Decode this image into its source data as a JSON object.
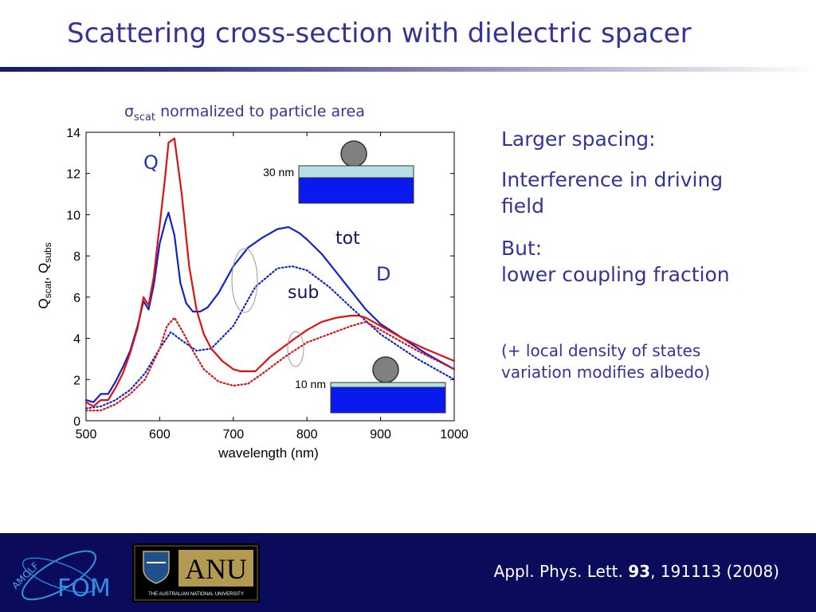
{
  "slide": {
    "title": "Scattering cross-section with dielectric spacer"
  },
  "right_panel": {
    "line1": "Larger spacing:",
    "line2": "Interference in driving field",
    "line3a": "But:",
    "line3b": "lower coupling fraction",
    "note": "(+ local density of states variation modifies albedo)"
  },
  "footer": {
    "reference_prefix": "Appl. Phys. Lett. ",
    "reference_volume": "93",
    "reference_suffix": ", 191113 (2008)",
    "logo_left_text": "AMOLF FOM",
    "logo_right_text": "ANU",
    "logo_right_subtext": "THE AUSTRALIAN NATIONAL UNIVERSITY"
  },
  "chart_data": {
    "type": "line",
    "title_main": "σ",
    "title_sub": "scat",
    "title_rest": " normalized to particle area",
    "xlabel": "wavelength (nm)",
    "ylabel_q1": "Q",
    "ylabel_s1": "scat",
    "ylabel_sep": ", Q",
    "ylabel_s2": "subs",
    "xlim": [
      500,
      1000
    ],
    "ylim": [
      0,
      14
    ],
    "xticks": [
      "500",
      "600",
      "700",
      "800",
      "900",
      "1000"
    ],
    "yticks": [
      "0",
      "2",
      "4",
      "6",
      "8",
      "10",
      "12",
      "14"
    ],
    "annotations": {
      "Q": "Q",
      "D": "D",
      "tot": "tot",
      "sub": "sub",
      "inset_top_label": "30 nm",
      "inset_bottom_label": "10 nm"
    },
    "colors": {
      "red": "#dd1111",
      "blue": "#1122cc"
    },
    "series": [
      {
        "color": "blue",
        "dash": false,
        "x": [
          500,
          510,
          520,
          530,
          540,
          550,
          560,
          570,
          578,
          585,
          592,
          600,
          608,
          612,
          620,
          628,
          636,
          645,
          655,
          665,
          680,
          700,
          720,
          740,
          760,
          775,
          790,
          800,
          820,
          840,
          860,
          880,
          900,
          930,
          960,
          1000
        ],
        "y": [
          1.0,
          0.9,
          1.3,
          1.3,
          1.9,
          2.6,
          3.4,
          4.6,
          5.8,
          5.4,
          6.6,
          8.6,
          9.7,
          10.1,
          9.0,
          6.7,
          5.7,
          5.3,
          5.3,
          5.5,
          6.2,
          7.5,
          8.4,
          8.9,
          9.3,
          9.4,
          9.1,
          8.8,
          8.1,
          7.2,
          6.3,
          5.4,
          4.7,
          4.0,
          3.3,
          2.5
        ]
      },
      {
        "color": "blue",
        "dash": true,
        "x": [
          500,
          520,
          540,
          560,
          580,
          600,
          615,
          630,
          650,
          670,
          700,
          730,
          760,
          780,
          800,
          830,
          860,
          900,
          950,
          1000
        ],
        "y": [
          0.6,
          0.7,
          1.0,
          1.5,
          2.3,
          3.5,
          4.3,
          3.9,
          3.4,
          3.5,
          4.6,
          6.5,
          7.4,
          7.5,
          7.3,
          6.5,
          5.5,
          4.2,
          3.0,
          2.0
        ]
      },
      {
        "color": "red",
        "dash": false,
        "x": [
          500,
          510,
          520,
          530,
          540,
          550,
          560,
          570,
          578,
          585,
          592,
          600,
          607,
          612,
          620,
          630,
          640,
          650,
          660,
          670,
          685,
          700,
          710,
          730,
          750,
          780,
          800,
          820,
          840,
          860,
          870,
          880,
          900,
          930,
          960,
          1000
        ],
        "y": [
          0.9,
          0.7,
          1.0,
          1.0,
          1.6,
          2.3,
          3.3,
          4.5,
          6.0,
          5.6,
          7.0,
          9.5,
          11.7,
          13.5,
          13.7,
          11.0,
          7.5,
          5.4,
          4.2,
          3.5,
          2.9,
          2.5,
          2.4,
          2.4,
          3.1,
          3.9,
          4.4,
          4.8,
          5.0,
          5.1,
          5.1,
          5.0,
          4.6,
          4.0,
          3.5,
          2.9
        ]
      },
      {
        "color": "red",
        "dash": true,
        "x": [
          500,
          520,
          540,
          560,
          580,
          600,
          610,
          620,
          630,
          645,
          660,
          680,
          700,
          720,
          740,
          770,
          800,
          830,
          860,
          880,
          900,
          950,
          1000
        ],
        "y": [
          0.5,
          0.5,
          0.8,
          1.3,
          2.0,
          3.5,
          4.6,
          5.0,
          4.4,
          3.4,
          2.5,
          1.9,
          1.7,
          1.8,
          2.3,
          3.1,
          3.8,
          4.2,
          4.6,
          4.8,
          4.4,
          3.4,
          2.5
        ]
      }
    ]
  }
}
